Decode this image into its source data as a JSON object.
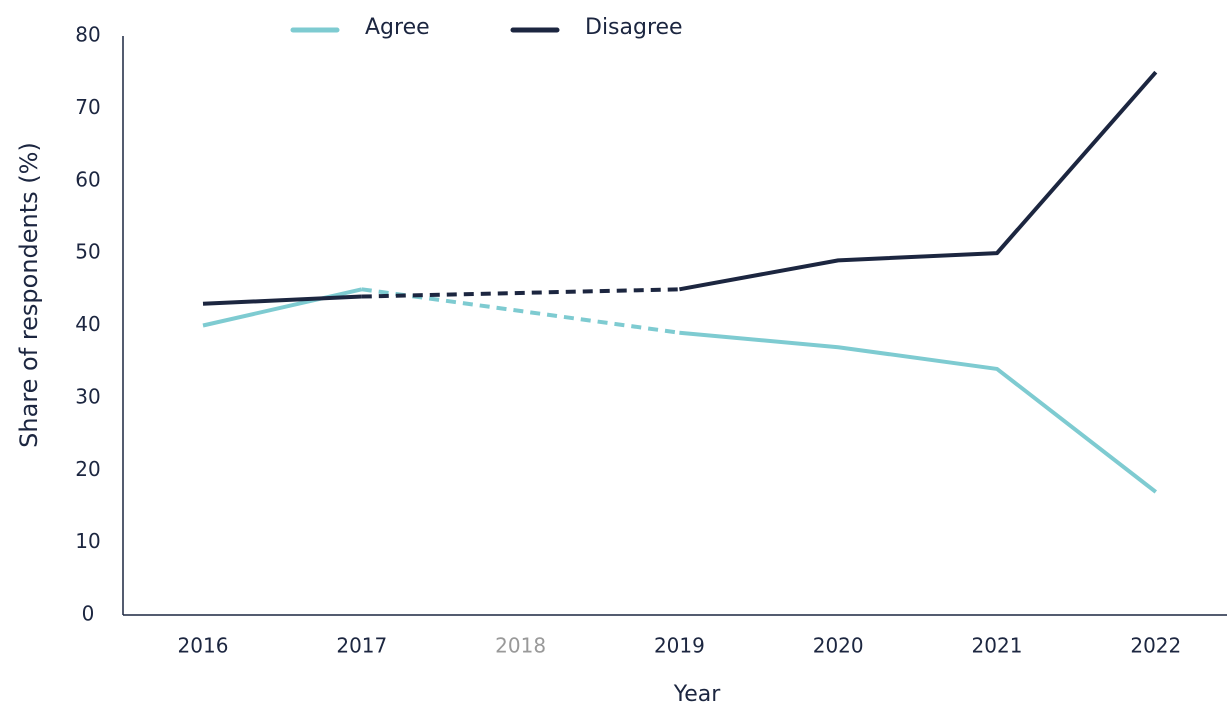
{
  "chart_data": {
    "type": "line",
    "y_label": "Share of respondents (%)",
    "x_label": "Year",
    "categories": [
      "2016",
      "2017",
      "2018",
      "2019",
      "2020",
      "2021",
      "2022"
    ],
    "series": [
      {
        "name": "Agree",
        "color": "#7ecbd1",
        "values": [
          40,
          45,
          null,
          39,
          37,
          34,
          17
        ]
      },
      {
        "name": "Disagree",
        "color": "#1c2640",
        "values": [
          43,
          44,
          null,
          45,
          49,
          50,
          75
        ]
      }
    ],
    "ylim": [
      0,
      80
    ],
    "yticks": [
      0,
      10,
      20,
      30,
      40,
      50,
      60,
      70,
      80
    ],
    "grid": false,
    "legend": "top"
  }
}
